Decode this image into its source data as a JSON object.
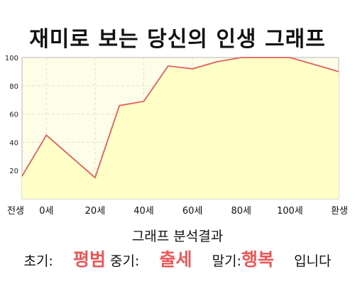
{
  "title": "재미로 보는 당신의 인생 그래프",
  "chart_data": {
    "type": "area",
    "x_categories": [
      "전생",
      "0세",
      "20세",
      "40세",
      "60세",
      "80세",
      "100세",
      "환생"
    ],
    "x": [
      "전생",
      "0세",
      "",
      "20세",
      "",
      "40세",
      "",
      "60세",
      "",
      "80세",
      "",
      "100세",
      "",
      "환생"
    ],
    "values": [
      16,
      45,
      30,
      15,
      66,
      69,
      94,
      92,
      97,
      100,
      100,
      100,
      95,
      90
    ],
    "ylim": [
      0,
      100
    ],
    "yticks": [
      20,
      40,
      60,
      80,
      100
    ],
    "grid": true,
    "line_color": "#e06060",
    "fill_color": "#ffffc8",
    "plot_bg": "#fefde8"
  },
  "analysis": {
    "heading": "그래프 분석결과",
    "early_label": "초기:",
    "early_value": "평범",
    "middle_label": "중기:",
    "middle_value": "출세",
    "late_label": "말기:",
    "late_value": "행복",
    "suffix": "입니다",
    "highlight_color": "#e85a5a"
  }
}
